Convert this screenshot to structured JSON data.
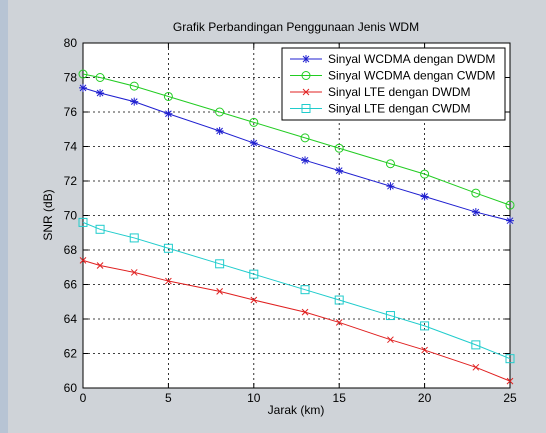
{
  "chart_data": {
    "type": "line",
    "title": "Grafik Perbandingan Penggunaan Jenis WDM",
    "xlabel": "Jarak (km)",
    "ylabel": "SNR (dB)",
    "xlim": [
      0,
      25
    ],
    "ylim": [
      60,
      80
    ],
    "xticks": [
      0,
      5,
      10,
      15,
      20,
      25
    ],
    "yticks": [
      60,
      62,
      64,
      66,
      68,
      70,
      72,
      74,
      76,
      78,
      80
    ],
    "grid": true,
    "legend_position": "top-right",
    "series": [
      {
        "name": "Sinyal WCDMA dengan DWDM",
        "color": "#1f1fd0",
        "marker": "star",
        "x": [
          0,
          1,
          3,
          5,
          8,
          10,
          13,
          15,
          18,
          20,
          23,
          25
        ],
        "y": [
          77.4,
          77.1,
          76.6,
          75.9,
          74.9,
          74.2,
          73.2,
          72.6,
          71.7,
          71.1,
          70.2,
          69.7
        ]
      },
      {
        "name": "Sinyal WCDMA dengan CWDM",
        "color": "#22cc22",
        "marker": "circle",
        "x": [
          0,
          1,
          3,
          5,
          8,
          10,
          13,
          15,
          18,
          20,
          23,
          25
        ],
        "y": [
          78.2,
          78.0,
          77.5,
          76.9,
          76.0,
          75.4,
          74.5,
          73.9,
          73.0,
          72.4,
          71.3,
          70.6
        ]
      },
      {
        "name": "Sinyal LTE dengan DWDM",
        "color": "#e02020",
        "marker": "x",
        "x": [
          0,
          1,
          3,
          5,
          8,
          10,
          13,
          15,
          18,
          20,
          23,
          25
        ],
        "y": [
          67.4,
          67.1,
          66.7,
          66.2,
          65.6,
          65.1,
          64.4,
          63.8,
          62.8,
          62.2,
          61.2,
          60.4
        ]
      },
      {
        "name": "Sinyal LTE dengan CWDM",
        "color": "#20cccc",
        "marker": "square",
        "x": [
          0,
          1,
          3,
          5,
          8,
          10,
          13,
          15,
          18,
          20,
          23,
          25
        ],
        "y": [
          69.6,
          69.2,
          68.7,
          68.1,
          67.2,
          66.6,
          65.7,
          65.1,
          64.2,
          63.6,
          62.5,
          61.7
        ]
      }
    ]
  }
}
